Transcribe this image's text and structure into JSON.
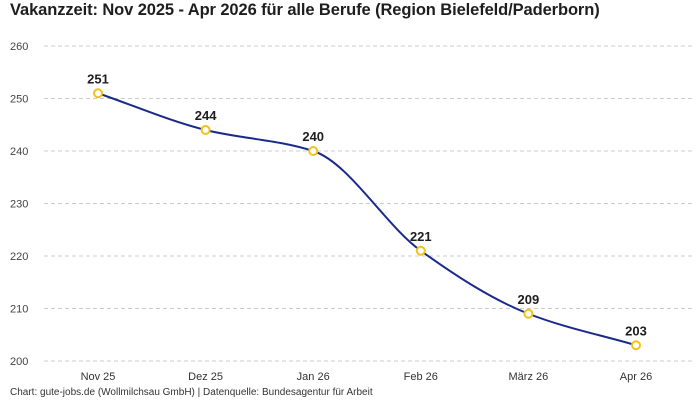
{
  "title": "Vakanzzeit: Nov 2025 - Apr 2026 für alle Berufe (Region Bielefeld/Paderborn)",
  "footer": "Chart: gute-jobs.de (Wollmilchsau GmbH) | Datenquelle: Bundesagentur für Arbeit",
  "colors": {
    "line": "#1a2a8c",
    "marker": "#f2c21b",
    "grid": "#cccccc"
  },
  "chart_data": {
    "type": "line",
    "title": "Vakanzzeit: Nov 2025 - Apr 2026 für alle Berufe (Region Bielefeld/Paderborn)",
    "xlabel": "",
    "ylabel": "",
    "categories": [
      "Nov 25",
      "Dez 25",
      "Jan 26",
      "Feb 26",
      "März 26",
      "Apr 26"
    ],
    "values": [
      251,
      244,
      240,
      221,
      209,
      203
    ],
    "ylim": [
      200,
      260
    ],
    "yticks": [
      200,
      210,
      220,
      230,
      240,
      250,
      260
    ],
    "grid": true,
    "smooth": true,
    "data_labels": true
  }
}
